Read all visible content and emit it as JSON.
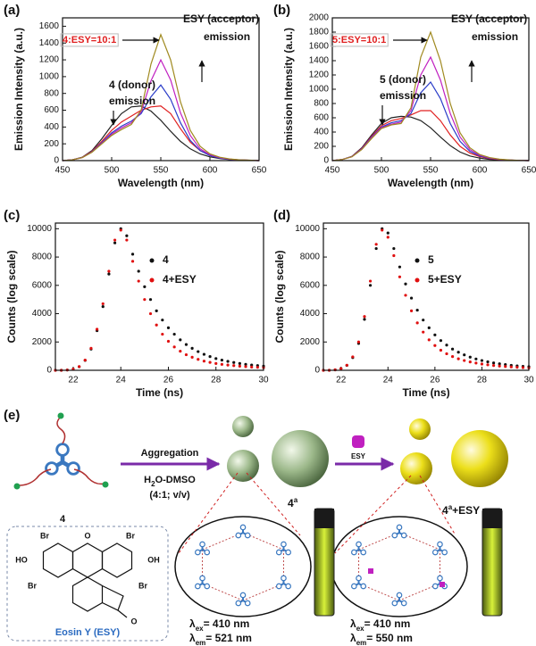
{
  "chart_data": [
    {
      "type": "line",
      "panel": "(a)",
      "x_label": "Wavelength (nm)",
      "y_label": "Emission Intensity (a.u.)",
      "xlim": [
        450,
        650
      ],
      "ylim": [
        0,
        1700
      ],
      "xticks": [
        450,
        500,
        550,
        600,
        650
      ],
      "yticks": [
        0,
        200,
        400,
        600,
        800,
        1000,
        1200,
        1400,
        1600
      ],
      "x": [
        450,
        460,
        470,
        480,
        490,
        500,
        510,
        520,
        530,
        540,
        550,
        560,
        570,
        580,
        590,
        600,
        610,
        620,
        630,
        640,
        650
      ],
      "series": [
        {
          "color": "#222222",
          "values": [
            0,
            10,
            40,
            120,
            260,
            420,
            560,
            640,
            650,
            590,
            480,
            350,
            230,
            140,
            80,
            45,
            25,
            12,
            6,
            3,
            0
          ]
        },
        {
          "color": "#e02020",
          "values": [
            0,
            10,
            38,
            110,
            230,
            360,
            460,
            530,
            600,
            640,
            650,
            560,
            380,
            220,
            120,
            65,
            35,
            18,
            9,
            4,
            0
          ]
        },
        {
          "color": "#2a3cc8",
          "values": [
            0,
            10,
            36,
            105,
            215,
            330,
            410,
            470,
            560,
            760,
            900,
            730,
            450,
            240,
            120,
            60,
            30,
            15,
            8,
            4,
            0
          ]
        },
        {
          "color": "#c020c0",
          "values": [
            0,
            10,
            35,
            102,
            205,
            315,
            390,
            450,
            580,
            950,
            1200,
            960,
            570,
            300,
            140,
            70,
            35,
            17,
            9,
            4,
            0
          ]
        },
        {
          "color": "#a08a20",
          "values": [
            0,
            10,
            35,
            100,
            200,
            300,
            370,
            430,
            600,
            1150,
            1500,
            1200,
            700,
            360,
            170,
            80,
            40,
            20,
            10,
            5,
            0
          ]
        }
      ],
      "annotations": [
        {
          "text": "4:ESY=10:1",
          "color": "#e02020"
        },
        {
          "text": "ESY (acceptor)"
        },
        {
          "text": "emission"
        },
        {
          "text": "4 (donor)"
        },
        {
          "text": "emission"
        }
      ]
    },
    {
      "type": "line",
      "panel": "(b)",
      "x_label": "Wavelength (nm)",
      "y_label": "Emission Intensity (a.u.)",
      "xlim": [
        450,
        650
      ],
      "ylim": [
        0,
        2000
      ],
      "xticks": [
        450,
        500,
        550,
        600,
        650
      ],
      "yticks": [
        0,
        200,
        400,
        600,
        800,
        1000,
        1200,
        1400,
        1600,
        1800,
        2000
      ],
      "x": [
        450,
        460,
        470,
        480,
        490,
        500,
        510,
        520,
        530,
        540,
        550,
        560,
        570,
        580,
        590,
        600,
        610,
        620,
        630,
        640,
        650
      ],
      "series": [
        {
          "color": "#222222",
          "values": [
            0,
            15,
            60,
            180,
            360,
            520,
            600,
            620,
            610,
            560,
            460,
            330,
            210,
            120,
            65,
            35,
            18,
            9,
            5,
            2,
            0
          ]
        },
        {
          "color": "#e02020",
          "values": [
            0,
            15,
            58,
            170,
            340,
            490,
            560,
            590,
            640,
            700,
            700,
            560,
            360,
            200,
            105,
            55,
            28,
            14,
            7,
            3,
            0
          ]
        },
        {
          "color": "#2a3cc8",
          "values": [
            0,
            15,
            56,
            165,
            330,
            470,
            530,
            560,
            660,
            950,
            1100,
            870,
            520,
            270,
            130,
            65,
            32,
            16,
            8,
            3,
            0
          ]
        },
        {
          "color": "#c020c0",
          "values": [
            0,
            15,
            55,
            160,
            320,
            460,
            510,
            540,
            700,
            1200,
            1450,
            1130,
            660,
            330,
            155,
            75,
            37,
            18,
            9,
            4,
            0
          ]
        },
        {
          "color": "#a08a20",
          "values": [
            0,
            15,
            54,
            155,
            310,
            450,
            500,
            520,
            740,
            1450,
            1800,
            1400,
            800,
            390,
            180,
            85,
            42,
            20,
            10,
            4,
            0
          ]
        }
      ],
      "annotations": [
        {
          "text": "5:ESY=10:1",
          "color": "#e02020"
        },
        {
          "text": "ESY (acceptor)"
        },
        {
          "text": "emission"
        },
        {
          "text": "5 (donor)"
        },
        {
          "text": "emission"
        }
      ]
    },
    {
      "type": "scatter",
      "panel": "(c)",
      "x_label": "Time (ns)",
      "y_label": "Counts (log scale)",
      "xlim": [
        21.25,
        30
      ],
      "ylim": [
        0,
        10400
      ],
      "xticks": [
        22,
        24,
        26,
        28,
        30
      ],
      "yticks": [
        0,
        2000,
        4000,
        6000,
        8000,
        10000
      ],
      "x": [
        21.25,
        21.5,
        21.75,
        22,
        22.25,
        22.5,
        22.75,
        23,
        23.25,
        23.5,
        23.75,
        24,
        24.25,
        24.5,
        24.75,
        25,
        25.25,
        25.5,
        25.75,
        26,
        26.25,
        26.5,
        26.75,
        27,
        27.25,
        27.5,
        27.75,
        28,
        28.25,
        28.5,
        28.75,
        29,
        29.25,
        29.5,
        29.75,
        30
      ],
      "series": [
        {
          "name": "4",
          "color": "#111111",
          "values": [
            0,
            0,
            20,
            80,
            250,
            700,
            1500,
            2800,
            4500,
            6800,
            9000,
            10000,
            9500,
            8200,
            7000,
            5900,
            5000,
            4200,
            3550,
            3000,
            2550,
            2150,
            1820,
            1550,
            1320,
            1130,
            970,
            830,
            720,
            630,
            550,
            480,
            420,
            370,
            330,
            290
          ]
        },
        {
          "name": "4+ESY",
          "color": "#e01010",
          "values": [
            0,
            0,
            20,
            80,
            260,
            720,
            1550,
            2900,
            4700,
            7000,
            9200,
            9900,
            9200,
            7700,
            6300,
            5000,
            4000,
            3200,
            2550,
            2050,
            1650,
            1350,
            1100,
            920,
            770,
            650,
            560,
            480,
            420,
            370,
            330,
            290,
            260,
            230,
            210,
            190
          ]
        }
      ]
    },
    {
      "type": "scatter",
      "panel": "(d)",
      "x_label": "Time (ns)",
      "y_label": "Counts (log scale)",
      "xlim": [
        21.25,
        30
      ],
      "ylim": [
        0,
        10400
      ],
      "xticks": [
        22,
        24,
        26,
        28,
        30
      ],
      "yticks": [
        0,
        2000,
        4000,
        6000,
        8000,
        10000
      ],
      "x": [
        21.25,
        21.5,
        21.75,
        22,
        22.25,
        22.5,
        22.75,
        23,
        23.25,
        23.5,
        23.75,
        24,
        24.25,
        24.5,
        24.75,
        25,
        25.25,
        25.5,
        25.75,
        26,
        26.25,
        26.5,
        26.75,
        27,
        27.25,
        27.5,
        27.75,
        28,
        28.25,
        28.5,
        28.75,
        29,
        29.25,
        29.5,
        29.75,
        30
      ],
      "series": [
        {
          "name": "5",
          "color": "#111111",
          "values": [
            0,
            0,
            30,
            120,
            350,
            900,
            1900,
            3600,
            6000,
            8600,
            10000,
            9700,
            8600,
            7300,
            6100,
            5100,
            4250,
            3550,
            3000,
            2500,
            2100,
            1780,
            1500,
            1280,
            1090,
            930,
            800,
            690,
            600,
            520,
            460,
            400,
            350,
            310,
            280,
            250
          ]
        },
        {
          "name": "5+ESY",
          "color": "#e01010",
          "values": [
            0,
            0,
            30,
            120,
            360,
            950,
            2000,
            3800,
            6300,
            8900,
            9900,
            9400,
            8100,
            6600,
            5300,
            4200,
            3350,
            2700,
            2150,
            1750,
            1420,
            1170,
            970,
            810,
            690,
            590,
            510,
            440,
            390,
            340,
            300,
            270,
            240,
            210,
            190,
            170
          ]
        }
      ]
    }
  ],
  "diagram": {
    "panel": "(e)",
    "compound": "4",
    "aggregation": "Aggregation",
    "solvent": {
      "base": "H",
      "sub": "2",
      "rest": "O-DMSO"
    },
    "ratio": "(4:1; v/v)",
    "aggregate": {
      "base": "4",
      "sup": "a"
    },
    "additive": "ESY",
    "complex": {
      "base": "4",
      "sup": "a",
      "rest": "+ESY"
    },
    "eosin": {
      "name": "Eosin Y (ESY)",
      "atoms": [
        "Br",
        "Br",
        "HO",
        "OH",
        "Br",
        "Br",
        "O",
        "O"
      ]
    },
    "spectra": [
      [
        {
          "symbol": "λ",
          "sub": "ex",
          "text": "= 410 nm"
        },
        {
          "symbol": "λ",
          "sub": "em",
          "text": "= 521 nm"
        }
      ],
      [
        {
          "symbol": "λ",
          "sub": "ex",
          "text": "= 410 nm"
        },
        {
          "symbol": "λ",
          "sub": "em",
          "text": "= 550 nm"
        }
      ]
    ]
  }
}
